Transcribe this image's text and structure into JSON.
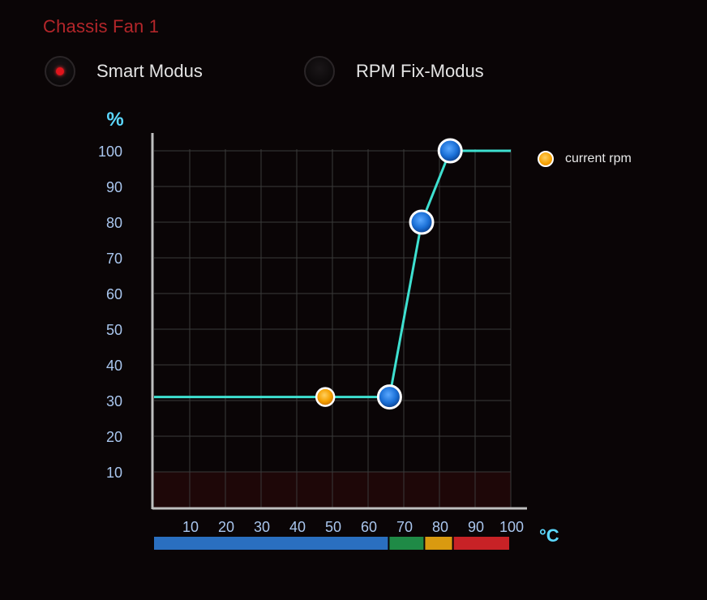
{
  "title": "Chassis Fan 1",
  "modes": [
    {
      "label": "Smart Modus",
      "selected": true
    },
    {
      "label": "RPM Fix-Modus",
      "selected": false
    }
  ],
  "colors": {
    "curve": "#3ee0d0",
    "grid": "#3a3a3a",
    "axis_label": "#a9c6ee",
    "unit": "#5cd8ff",
    "selected_dot": "#e0141c",
    "current_marker": "#f5a000",
    "control_point": "#1a6fd6"
  },
  "legend": {
    "label": "current rpm",
    "icon": "orange-dot-icon"
  },
  "chart_data": {
    "type": "line",
    "ylabel": "%",
    "xlabel": "°C",
    "xlim": [
      0,
      100
    ],
    "ylim": [
      0,
      100
    ],
    "x_ticks": [
      10,
      20,
      30,
      40,
      50,
      60,
      70,
      80,
      90,
      100
    ],
    "y_ticks": [
      10,
      20,
      30,
      40,
      50,
      60,
      70,
      80,
      90,
      100
    ],
    "grid": true,
    "curve": [
      {
        "x": 0,
        "y": 31
      },
      {
        "x": 66,
        "y": 31
      },
      {
        "x": 75,
        "y": 80
      },
      {
        "x": 83,
        "y": 100
      },
      {
        "x": 100,
        "y": 100
      }
    ],
    "control_points": [
      {
        "x": 66,
        "y": 31
      },
      {
        "x": 75,
        "y": 80
      },
      {
        "x": 83,
        "y": 100
      }
    ],
    "current": {
      "x": 48,
      "y": 31
    },
    "temperature_zones": [
      {
        "from": 0,
        "to": 66,
        "color": "#2a6fc0"
      },
      {
        "from": 66,
        "to": 76,
        "color": "#1f8a46"
      },
      {
        "from": 76,
        "to": 84,
        "color": "#d99a10"
      },
      {
        "from": 84,
        "to": 100,
        "color": "#c82226"
      }
    ],
    "low_band": {
      "from": 0,
      "to": 10,
      "color": "#1e0708"
    }
  }
}
